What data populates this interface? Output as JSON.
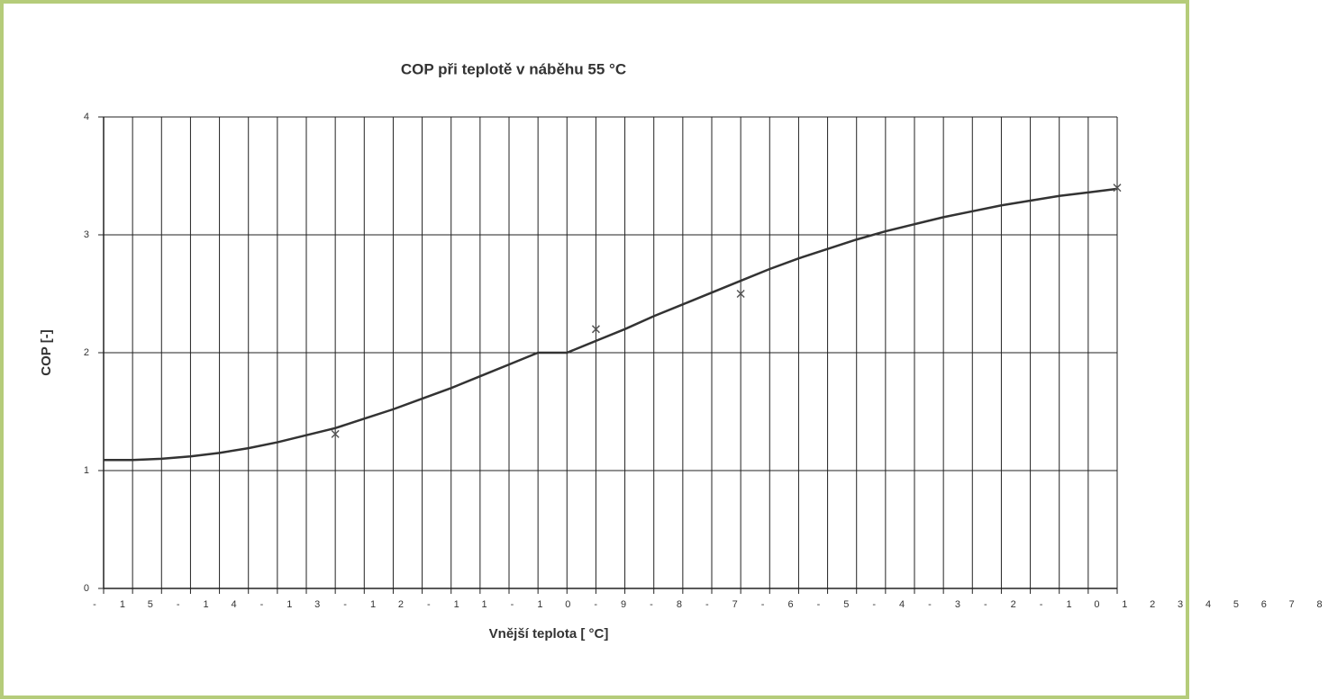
{
  "chart_data": {
    "type": "line",
    "title": "COP při teplotě v náběhu 55 °C",
    "y_label": "COP [-]",
    "x_label": "Vnější teplota [ °C]",
    "x_tick_labels": [
      "-",
      "1",
      "5",
      "-",
      "1",
      "4",
      "-",
      "1",
      "3",
      "-",
      "1",
      "2",
      "-",
      "1",
      "1",
      "-",
      "1",
      "0",
      "-",
      "9",
      "-",
      "8",
      "-",
      "7",
      "-",
      "6",
      "-",
      "5",
      "-",
      "4",
      "-",
      "3",
      "-",
      "2",
      "-",
      "1",
      "0",
      "1",
      "2",
      "3",
      "4",
      "5",
      "6",
      "7",
      "8"
    ],
    "categories": [
      null,
      null,
      null,
      null,
      null,
      null,
      null,
      null,
      null,
      null,
      null,
      null,
      null,
      null,
      null,
      null,
      null,
      null,
      null,
      null,
      null,
      null,
      null,
      null,
      null,
      null,
      null,
      null,
      null,
      null,
      null,
      null,
      null,
      null,
      null,
      null
    ],
    "series": [
      {
        "style": "line",
        "color": "#333333",
        "values": [
          1.09,
          1.09,
          1.1,
          1.12,
          1.15,
          1.19,
          1.24,
          1.3,
          1.36,
          1.44,
          1.52,
          1.61,
          1.7,
          1.8,
          1.9,
          2.0,
          2.0,
          2.1,
          2.2,
          2.31,
          2.41,
          2.51,
          2.61,
          2.71,
          2.8,
          2.88,
          2.96,
          3.03,
          3.09,
          3.15,
          3.2,
          3.25,
          3.29,
          3.33,
          3.36,
          3.39
        ]
      },
      {
        "style": "x-marker",
        "color": "#555555",
        "values": [
          null,
          null,
          null,
          null,
          null,
          null,
          null,
          null,
          1.31,
          null,
          null,
          null,
          null,
          null,
          null,
          null,
          null,
          2.2,
          null,
          null,
          null,
          null,
          2.5,
          null,
          null,
          null,
          null,
          null,
          null,
          null,
          null,
          null,
          null,
          null,
          null,
          3.4
        ]
      }
    ],
    "ylim": [
      0,
      4
    ],
    "yticks": [
      0,
      1,
      2,
      3,
      4
    ],
    "grid": true
  }
}
